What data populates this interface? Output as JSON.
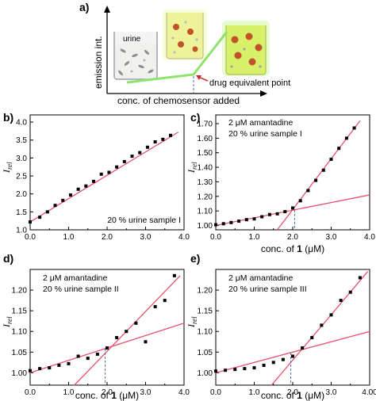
{
  "schematic": {
    "panel_label": "a)",
    "ylabel": "emission int.",
    "xlabel": "conc. of chemosensor added",
    "beaker_label": "urine",
    "annotation": "drug equivalent point"
  },
  "chart_data": [
    {
      "id": "b",
      "panel_label": "b)",
      "type": "scatter",
      "ylabel": "I",
      "ylabel_sub": "rel",
      "xlabel": "",
      "annotation": "20 % urine sample I",
      "xlim": [
        0,
        4.0
      ],
      "ylim": [
        1.0,
        4.2
      ],
      "xticks": [
        0.0,
        1.0,
        2.0,
        3.0,
        4.0
      ],
      "xtick_labels": [
        "0.0",
        "1.0",
        "2.0",
        "3.0",
        "4.0"
      ],
      "yticks": [
        1.0,
        1.5,
        2.0,
        2.5,
        3.0,
        3.5,
        4.0
      ],
      "ytick_labels": [
        "1.0",
        "1.5",
        "2.0",
        "2.5",
        "3.0",
        "3.5",
        "4.0"
      ],
      "points": {
        "x": [
          0.0,
          0.25,
          0.45,
          0.65,
          0.85,
          1.05,
          1.25,
          1.45,
          1.65,
          1.85,
          2.05,
          2.25,
          2.45,
          2.65,
          2.85,
          3.05,
          3.25,
          3.45,
          3.65
        ],
        "y": [
          1.22,
          1.35,
          1.5,
          1.68,
          1.82,
          1.97,
          2.13,
          2.22,
          2.35,
          2.55,
          2.6,
          2.75,
          2.9,
          3.05,
          3.15,
          3.3,
          3.45,
          3.52,
          3.63
        ]
      },
      "fit_lines": [
        {
          "x": [
            0.0,
            3.85
          ],
          "y": [
            1.22,
            3.72
          ]
        }
      ],
      "equivalence_x": null
    },
    {
      "id": "c",
      "panel_label": "c)",
      "type": "scatter",
      "ylabel": "I",
      "ylabel_sub": "rel",
      "xlabel_parts": [
        "conc. of ",
        "1",
        " (μM)"
      ],
      "annotation_lines": [
        "2 μM amantadine",
        "20 % urine sample I"
      ],
      "xlim": [
        0,
        4.0
      ],
      "ylim": [
        0.97,
        1.76
      ],
      "xticks": [
        0.0,
        1.0,
        2.0,
        3.0,
        4.0
      ],
      "xtick_labels": [
        "0.0",
        "1.0",
        "2.0",
        "3.0",
        "4.0"
      ],
      "yticks": [
        1.0,
        1.1,
        1.2,
        1.3,
        1.4,
        1.5,
        1.6,
        1.7
      ],
      "ytick_labels": [
        "1.00",
        "1.10",
        "1.20",
        "1.30",
        "1.40",
        "1.50",
        "1.60",
        "1.70"
      ],
      "points": {
        "x": [
          0.0,
          0.2,
          0.4,
          0.6,
          0.8,
          1.0,
          1.2,
          1.4,
          1.6,
          1.8,
          2.0,
          2.2,
          2.4,
          2.6,
          2.8,
          3.0,
          3.2,
          3.4,
          3.6
        ],
        "y": [
          1.005,
          1.012,
          1.02,
          1.03,
          1.04,
          1.045,
          1.06,
          1.075,
          1.08,
          1.095,
          1.12,
          1.17,
          1.24,
          1.31,
          1.38,
          1.455,
          1.53,
          1.6,
          1.67
        ]
      },
      "fit_lines": [
        {
          "x": [
            0.0,
            4.0
          ],
          "y": [
            1.0,
            1.21
          ]
        },
        {
          "x": [
            1.6,
            3.75
          ],
          "y": [
            0.97,
            1.72
          ]
        }
      ],
      "equivalence_x": 2.05
    },
    {
      "id": "d",
      "panel_label": "d)",
      "type": "scatter",
      "ylabel": "I",
      "ylabel_sub": "rel",
      "xlabel_parts": [
        "conc. of ",
        "1",
        " (μM)"
      ],
      "annotation_lines": [
        "2 μM amantadine",
        "20 % urine sample II"
      ],
      "xlim": [
        0,
        4.0
      ],
      "ylim": [
        0.97,
        1.25
      ],
      "xticks": [
        0.0,
        1.0,
        2.0,
        3.0,
        4.0
      ],
      "xtick_labels": [
        "0.0",
        "1.0",
        "2.0",
        "3.0",
        "4.0"
      ],
      "yticks": [
        1.0,
        1.05,
        1.1,
        1.15,
        1.2
      ],
      "ytick_labels": [
        "1.00",
        "1.05",
        "1.10",
        "1.15",
        "1.20"
      ],
      "points": {
        "x": [
          0.0,
          0.25,
          0.5,
          0.75,
          1.0,
          1.25,
          1.5,
          1.75,
          2.0,
          2.25,
          2.5,
          2.75,
          3.0,
          3.25,
          3.5,
          3.75
        ],
        "y": [
          1.005,
          1.01,
          1.012,
          1.018,
          1.022,
          1.04,
          1.035,
          1.045,
          1.06,
          1.085,
          1.1,
          1.12,
          1.075,
          1.16,
          1.175,
          1.235
        ]
      },
      "fit_lines": [
        {
          "x": [
            0.0,
            4.0
          ],
          "y": [
            1.0,
            1.12
          ]
        },
        {
          "x": [
            1.15,
            3.9
          ],
          "y": [
            0.97,
            1.235
          ]
        }
      ],
      "equivalence_x": 1.95
    },
    {
      "id": "e",
      "panel_label": "e)",
      "type": "scatter",
      "ylabel": "I",
      "ylabel_sub": "rel",
      "xlabel_parts": [
        "conc. of ",
        "1",
        " (μM)"
      ],
      "annotation_lines": [
        "2 μM amantadine",
        "20 % urine sample III"
      ],
      "xlim": [
        0,
        4.0
      ],
      "ylim": [
        0.97,
        1.25
      ],
      "xticks": [
        0.0,
        1.0,
        2.0,
        3.0,
        4.0
      ],
      "xtick_labels": [
        "0.0",
        "1.0",
        "2.0",
        "3.0",
        "4.00"
      ],
      "yticks": [
        1.0,
        1.05,
        1.1,
        1.15,
        1.2
      ],
      "ytick_labels": [
        "1.00",
        "1.05",
        "1.10",
        "1.15",
        "1.20"
      ],
      "points": {
        "x": [
          0.0,
          0.25,
          0.5,
          0.75,
          1.0,
          1.25,
          1.5,
          1.75,
          2.0,
          2.25,
          2.5,
          2.75,
          3.0,
          3.25,
          3.5,
          3.75
        ],
        "y": [
          1.004,
          1.006,
          1.008,
          1.01,
          1.012,
          1.018,
          1.025,
          1.032,
          1.04,
          1.06,
          1.085,
          1.115,
          1.14,
          1.175,
          1.195,
          1.23
        ]
      },
      "fit_lines": [
        {
          "x": [
            0.0,
            4.0
          ],
          "y": [
            1.0,
            1.1
          ]
        },
        {
          "x": [
            1.45,
            3.95
          ],
          "y": [
            0.97,
            1.245
          ]
        }
      ],
      "equivalence_x": 1.95
    }
  ],
  "colors": {
    "fit_line": "#e8506a",
    "guide": "#4d6fa0",
    "schematic_line": "#8fe36b",
    "arrow": "#d12a2a",
    "beaker_liquid": "#eef29a"
  }
}
